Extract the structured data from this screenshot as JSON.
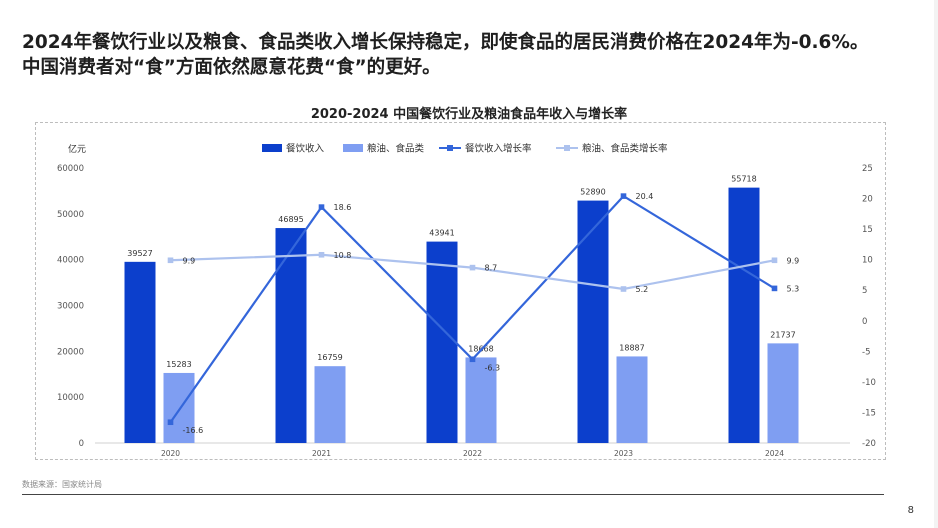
{
  "headline": {
    "line1": "2024年餐饮行业以及粮食、食品类收入增长保持稳定，即使食品的居民消费价格在2024年为-0.6%。",
    "line2": "中国消费者对“食”方面依然愿意花费“食”的更好。"
  },
  "source": "数据来源：国家统计局",
  "page_number": "8",
  "colors": {
    "bar_catering": "#0c3fcc",
    "bar_grain": "#7f9ef2",
    "line_catering": "#3466da",
    "line_grain": "#adc2ee"
  },
  "chart_data": {
    "type": "bar",
    "title": "2020-2024 中国餐饮行业及粮油食品年收入与增长率",
    "ylabel": "亿元",
    "categories": [
      "2020",
      "2021",
      "2022",
      "2023",
      "2024"
    ],
    "ylim": [
      0,
      60000
    ],
    "yticks": [
      "0",
      "10000",
      "20000",
      "30000",
      "40000",
      "50000",
      "60000"
    ],
    "y2lim": [
      -20,
      25
    ],
    "y2ticks": [
      "-20",
      "-15",
      "-10",
      "-5",
      "0",
      "5",
      "10",
      "15",
      "20",
      "25"
    ],
    "legend_position": "top-center",
    "grid": false,
    "series": [
      {
        "name": "餐饮收入",
        "kind": "bar",
        "axis": "left",
        "values": [
          39527,
          46895,
          43941,
          52890,
          55718
        ],
        "labels": [
          "39527",
          "46895",
          "43941",
          "52890",
          "55718"
        ]
      },
      {
        "name": "粮油、食品类",
        "kind": "bar",
        "axis": "left",
        "values": [
          15283,
          16759,
          18668,
          18887,
          21737
        ],
        "labels": [
          "15283",
          "16759",
          "18668",
          "18887",
          "21737"
        ]
      },
      {
        "name": "餐饮收入增长率",
        "kind": "line",
        "axis": "right",
        "values": [
          -16.6,
          18.6,
          -6.3,
          20.4,
          5.3
        ],
        "labels": [
          "-16.6",
          "18.6",
          "-6.3",
          "20.4",
          "5.3"
        ]
      },
      {
        "name": "粮油、食品类增长率",
        "kind": "line",
        "axis": "right",
        "values": [
          9.9,
          10.8,
          8.7,
          5.2,
          9.9
        ],
        "labels": [
          "9.9",
          "10.8",
          "8.7",
          "5.2",
          "9.9"
        ]
      }
    ]
  }
}
